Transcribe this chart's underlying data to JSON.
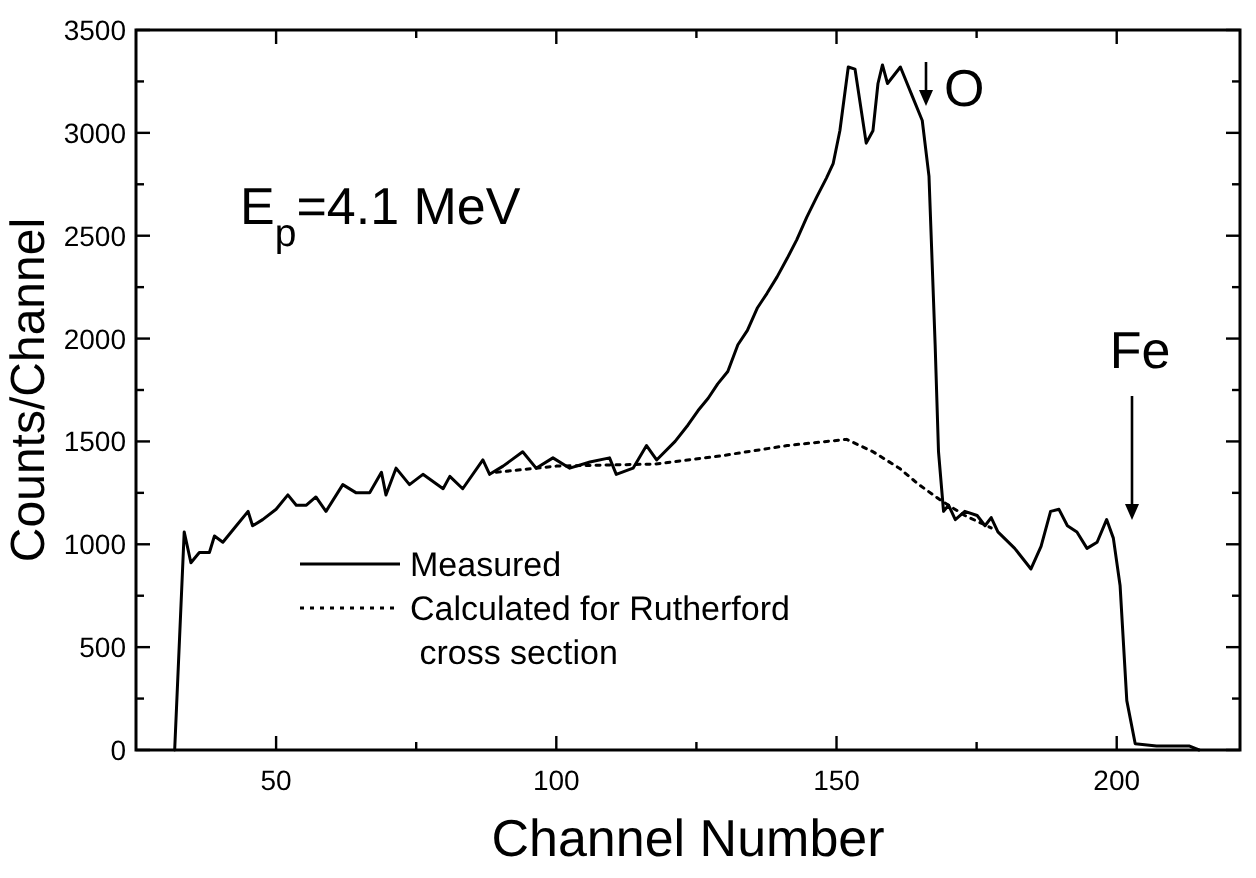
{
  "chart_data": {
    "type": "line",
    "xlabel": "Channel Number",
    "ylabel": "Counts/Channel",
    "xlim": [
      25,
      222
    ],
    "ylim": [
      0,
      3500
    ],
    "xticks": [
      50,
      {
        "value": 75,
        "label": null
      },
      100,
      {
        "value": 125,
        "label": null
      },
      150,
      {
        "value": 175,
        "label": null
      },
      200
    ],
    "yticks": [
      0,
      {
        "value": 250,
        "label": null
      },
      500,
      {
        "value": 750,
        "label": null
      },
      1000,
      {
        "value": 1250,
        "label": null
      },
      1500,
      {
        "value": 1750,
        "label": null
      },
      2000,
      {
        "value": 2250,
        "label": null
      },
      2500,
      {
        "value": 2750,
        "label": null
      },
      3000,
      {
        "value": 3250,
        "label": null
      },
      3500
    ],
    "grid": false,
    "legend": "bottom left",
    "marker": "none",
    "series": [
      {
        "name": "Measured",
        "color": "#000000",
        "line_style": "solid",
        "x": [
          31.9,
          33.6,
          34.8,
          36.3,
          38.1,
          39.0,
          40.5,
          42.9,
          45.0,
          45.8,
          47.6,
          50,
          52.1,
          53.6,
          55.4,
          57.1,
          58.9,
          61.9,
          64.3,
          66.7,
          68.8,
          69.6,
          71.4,
          73.8,
          76.2,
          79.8,
          81.0,
          83.3,
          86.9,
          88.1,
          90.5,
          94.0,
          96.4,
          99.4,
          102.4,
          106.0,
          109.5,
          110.7,
          113.7,
          116.1,
          117.9,
          121.2,
          123.5,
          125.3,
          127.1,
          128.8,
          130.6,
          132.4,
          134.1,
          135.9,
          137.6,
          139.4,
          141.2,
          142.9,
          144.7,
          146.5,
          148.2,
          149.4,
          150.6,
          152.1,
          153.3,
          155.3,
          156.5,
          157.4,
          158.2,
          159.1,
          161.4,
          163.5,
          165.3,
          166.5,
          167.6,
          168.2,
          169.1,
          170.0,
          171.2,
          172.9,
          175.1,
          176.5,
          177.6,
          178.8,
          181.8,
          184.7,
          186.5,
          188.2,
          189.7,
          191.2,
          192.9,
          194.7,
          196.5,
          198.2,
          199.4,
          200.6,
          201.8,
          203.3,
          207.1,
          212.9,
          214.7
        ],
        "values": [
          0,
          1060,
          910,
          960,
          960,
          1040,
          1010,
          1090,
          1160,
          1090,
          1120,
          1170,
          1240,
          1190,
          1190,
          1230,
          1160,
          1290,
          1250,
          1250,
          1350,
          1240,
          1370,
          1290,
          1340,
          1270,
          1330,
          1270,
          1410,
          1340,
          1380,
          1450,
          1370,
          1420,
          1370,
          1400,
          1420,
          1340,
          1370,
          1480,
          1410,
          1500,
          1580,
          1650,
          1710,
          1780,
          1840,
          1970,
          2040,
          2150,
          2220,
          2300,
          2390,
          2480,
          2590,
          2690,
          2780,
          2850,
          3010,
          3320,
          3310,
          2950,
          3010,
          3240,
          3330,
          3240,
          3320,
          3180,
          3060,
          2790,
          1970,
          1450,
          1160,
          1190,
          1120,
          1160,
          1140,
          1090,
          1130,
          1060,
          980,
          880,
          990,
          1160,
          1170,
          1090,
          1060,
          980,
          1010,
          1120,
          1030,
          800,
          240,
          30,
          20,
          20,
          0
        ]
      },
      {
        "name": "Calculated for Rutherford\n cross section",
        "color": "#000000",
        "line_style": "dotted",
        "x": [
          89.3,
          100,
          117.6,
          129.4,
          141.2,
          151.8,
          156.5,
          161.2,
          164.7,
          168.8,
          172.9,
          177.6
        ],
        "values": [
          1350,
          1380,
          1390,
          1430,
          1480,
          1510,
          1450,
          1370,
          1290,
          1210,
          1140,
          1080
        ]
      }
    ],
    "annotations": [
      "E$_{p}$=4.1 MeV",
      "O",
      "Fe"
    ]
  }
}
